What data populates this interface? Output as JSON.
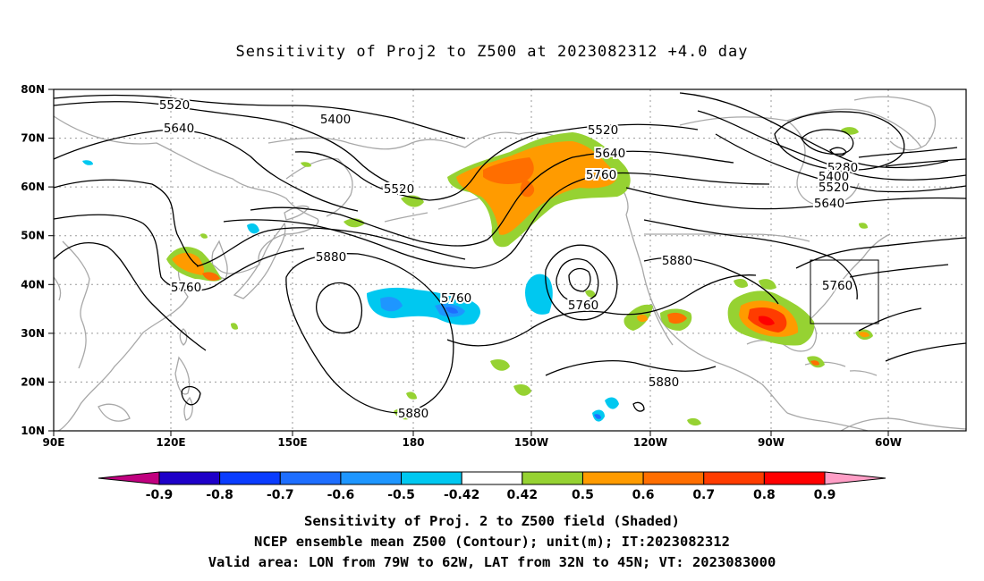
{
  "title": "Sensitivity of Proj2 to Z500 at 2023082312 +4.0 day",
  "map": {
    "lon_range": [
      "90E",
      "300E"
    ],
    "lat_range": [
      "10N",
      "80N"
    ],
    "lon_ticks": [
      "90E",
      "120E",
      "150E",
      "180",
      "150W",
      "120W",
      "90W",
      "60W"
    ],
    "lat_ticks": [
      "10N",
      "20N",
      "30N",
      "40N",
      "50N",
      "60N",
      "70N",
      "80N"
    ],
    "contour_labels": [
      {
        "id": "c5520a",
        "text": "5520"
      },
      {
        "id": "c5400a",
        "text": "5400"
      },
      {
        "id": "c5640a",
        "text": "5640"
      },
      {
        "id": "c5520b",
        "text": "5520"
      },
      {
        "id": "c5520c",
        "text": "5520"
      },
      {
        "id": "c5640b",
        "text": "5640"
      },
      {
        "id": "c5760a",
        "text": "5760"
      },
      {
        "id": "c5280a",
        "text": "5280"
      },
      {
        "id": "c5400b",
        "text": "5400"
      },
      {
        "id": "c5520d",
        "text": "5520"
      },
      {
        "id": "c5640c",
        "text": "5640"
      },
      {
        "id": "c5880a",
        "text": "5880"
      },
      {
        "id": "c5760b",
        "text": "5760"
      },
      {
        "id": "c5760c",
        "text": "5760"
      },
      {
        "id": "c5880b",
        "text": "5880"
      },
      {
        "id": "c5760d",
        "text": "5760"
      },
      {
        "id": "c5760e",
        "text": "5760"
      },
      {
        "id": "c5880c",
        "text": "5880"
      },
      {
        "id": "c5880d",
        "text": "5880"
      }
    ],
    "valid_box": {
      "lon": [
        "79W",
        "62W"
      ],
      "lat": [
        "32N",
        "45N"
      ]
    }
  },
  "colorbar": {
    "colors": [
      "#c0007f",
      "#1e00c8",
      "#0a3cff",
      "#1e6eff",
      "#1e96ff",
      "#00c8f0",
      "#ffffff",
      "#96d232",
      "#ff9b00",
      "#ff6e00",
      "#ff3c00",
      "#ff0000",
      "#ff9ec6"
    ],
    "labels": [
      "-0.9",
      "-0.8",
      "-0.7",
      "-0.6",
      "-0.5",
      "-0.42",
      "0.42",
      "0.5",
      "0.6",
      "0.7",
      "0.8",
      "0.9"
    ]
  },
  "caption": {
    "line1": "Sensitivity of Proj. 2 to Z500 field (Shaded)",
    "line2": "NCEP ensemble mean Z500 (Contour); unit(m); IT:2023082312",
    "line3": "Valid area: LON from 79W to 62W, LAT from 32N to 45N; VT: 2023083000"
  }
}
